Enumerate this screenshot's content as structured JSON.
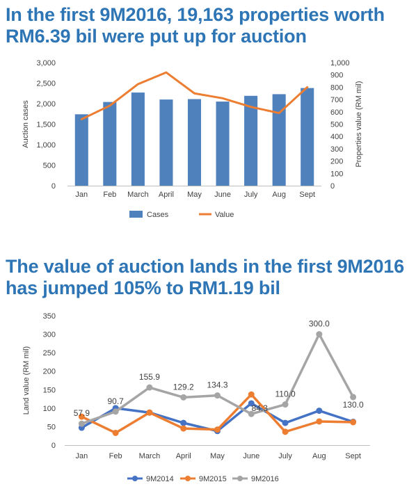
{
  "chart_data": [
    {
      "type": "bar",
      "title": "In the first 9M2016, 19,163 properties worth RM6.39 bil were put up for auction",
      "categories": [
        "Jan",
        "Feb",
        "March",
        "April",
        "May",
        "June",
        "July",
        "Aug",
        "Sept"
      ],
      "series": [
        {
          "name": "Cases",
          "type": "bar",
          "axis": "left",
          "color": "#4f81bd",
          "values": [
            1740,
            2040,
            2270,
            2100,
            2110,
            2050,
            2190,
            2230,
            2380
          ]
        },
        {
          "name": "Value",
          "type": "line",
          "axis": "right",
          "color": "#ed7d31",
          "values": [
            540,
            650,
            825,
            920,
            750,
            710,
            640,
            590,
            800
          ]
        }
      ],
      "ylabel": "Auction cases",
      "y2label": "Properties value (RM mil)",
      "ylim": [
        0,
        3000
      ],
      "y2lim": [
        0,
        1000
      ],
      "yticks": [
        "0",
        "500",
        "1,000",
        "1,500",
        "2,000",
        "2,500",
        "3,000"
      ],
      "y2ticks": [
        "0",
        "100",
        "200",
        "300",
        "400",
        "500",
        "600",
        "700",
        "800",
        "900",
        "1,000"
      ],
      "legend_position": "bottom",
      "grid": false
    },
    {
      "type": "line",
      "title": "The value of auction lands in the first 9M2016 has jumped 105% to RM1.19 bil",
      "categories": [
        "Jan",
        "Feb",
        "March",
        "April",
        "May",
        "June",
        "July",
        "Aug",
        "Sept"
      ],
      "series": [
        {
          "name": "9M2014",
          "color": "#4472c4",
          "values": [
            47,
            100,
            88,
            60,
            38,
            113,
            60,
            93,
            63
          ]
        },
        {
          "name": "9M2015",
          "color": "#ed7d31",
          "values": [
            77,
            33,
            88,
            45,
            42,
            137,
            36,
            64,
            62
          ]
        },
        {
          "name": "9M2016",
          "color": "#a5a5a5",
          "values": [
            57.9,
            90.7,
            155.9,
            129.2,
            134.3,
            84.3,
            110.0,
            300.0,
            130.0
          ],
          "labels": [
            "57.9",
            "90.7",
            "155.9",
            "129.2",
            "134.3",
            "84.3",
            "110.0",
            "300.0",
            "130.0"
          ]
        }
      ],
      "ylabel": "Land value (RM mil)",
      "ylim": [
        0,
        350
      ],
      "yticks": [
        "0",
        "50",
        "100",
        "150",
        "200",
        "250",
        "300",
        "350"
      ],
      "legend_position": "bottom",
      "grid": false
    }
  ]
}
